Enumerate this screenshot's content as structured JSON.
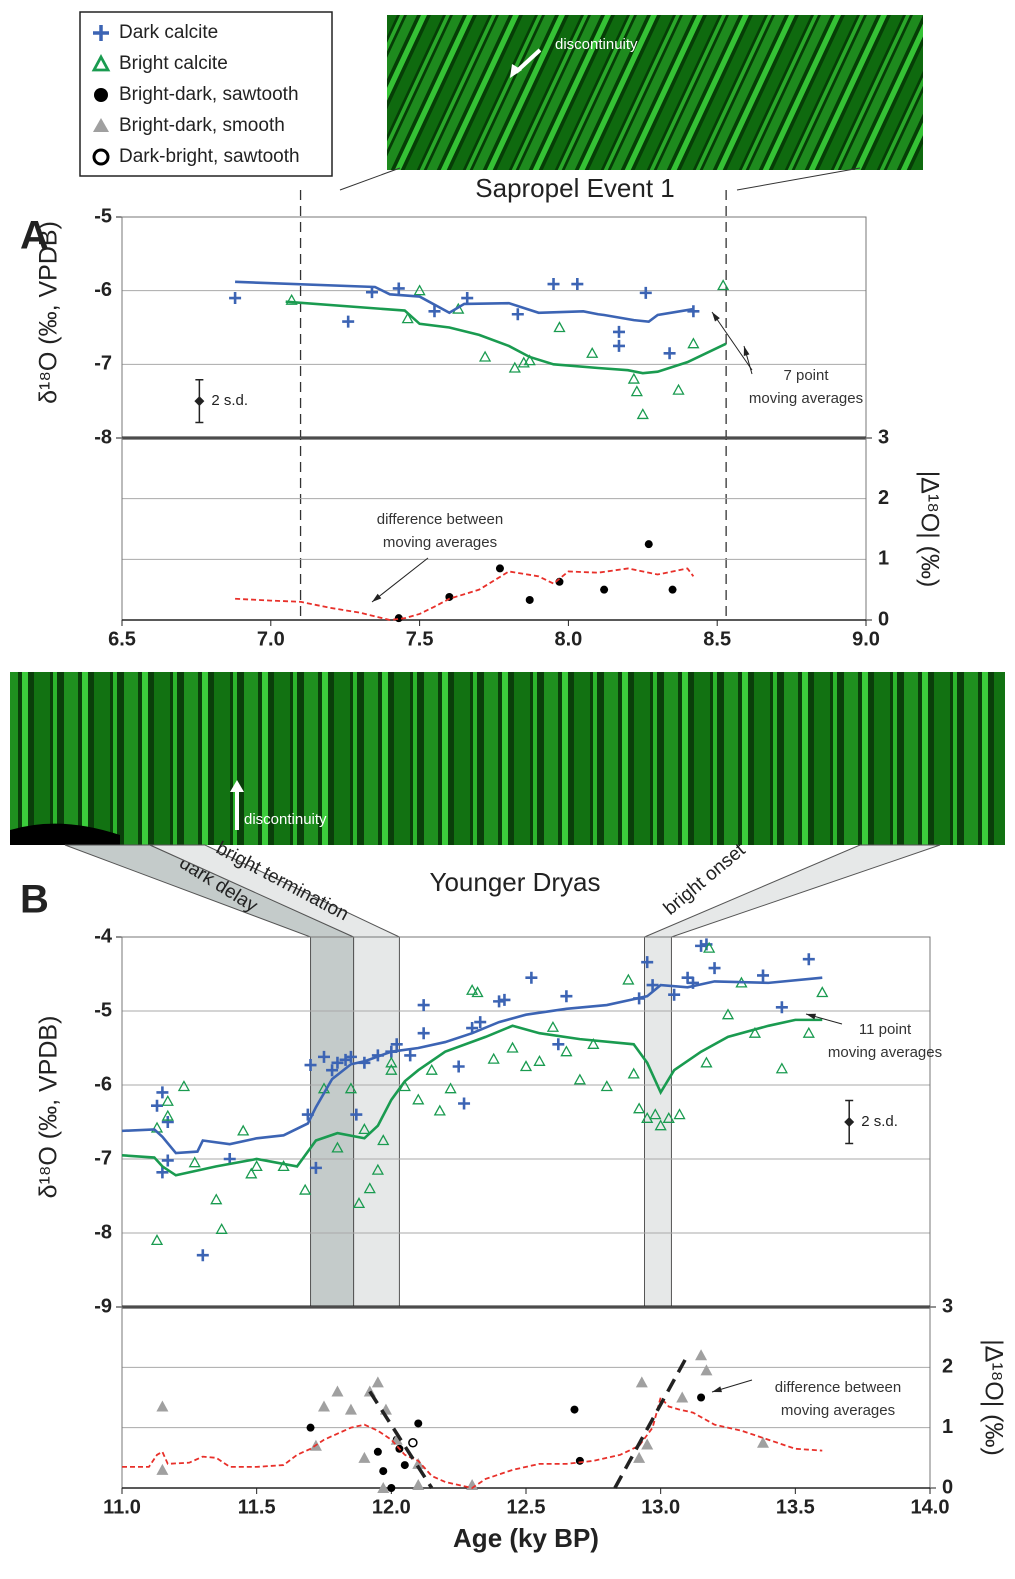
{
  "legend_border": true,
  "chart_data": [
    {
      "type": "scatter",
      "panel": "A",
      "title": "Sapropel Event 1",
      "ylabel": "δ¹⁸O (‰, VPDB)",
      "xlim": [
        6.5,
        9.0
      ],
      "ylim": [
        -8,
        -5
      ],
      "yticks": [
        -8,
        -7,
        -6,
        -5
      ],
      "grid": true,
      "vlines": [
        7.1,
        8.53
      ],
      "series": [
        {
          "name": "Dark calcite",
          "color": "#3c64b4",
          "marker": "plus",
          "x": [
            6.88,
            7.26,
            7.34,
            7.43,
            7.55,
            7.66,
            7.83,
            7.95,
            8.03,
            8.17,
            8.17,
            8.26,
            8.34,
            8.42
          ],
          "values": [
            -6.1,
            -6.42,
            -6.02,
            -5.97,
            -6.28,
            -6.1,
            -6.32,
            -5.91,
            -5.91,
            -6.56,
            -6.75,
            -6.03,
            -6.85,
            -6.28
          ]
        },
        {
          "name": "Bright calcite",
          "color": "#1a9b50",
          "marker": "triangle",
          "x": [
            7.07,
            7.5,
            7.46,
            7.63,
            7.72,
            7.82,
            7.85,
            7.87,
            7.97,
            8.08,
            8.22,
            8.23,
            8.25,
            8.37,
            8.42,
            8.52
          ],
          "values": [
            -6.13,
            -6.0,
            -6.38,
            -6.25,
            -6.9,
            -7.05,
            -6.98,
            -6.95,
            -6.5,
            -6.85,
            -7.2,
            -7.37,
            -7.68,
            -7.35,
            -6.72,
            -5.93
          ]
        },
        {
          "color": "#3c64b4",
          "marker": "line",
          "x": [
            6.88,
            7.35,
            7.4,
            7.5,
            7.6,
            7.65,
            7.8,
            7.9,
            8.05,
            8.1,
            8.12,
            8.22,
            8.27,
            8.3,
            8.42
          ],
          "values": [
            -5.88,
            -5.95,
            -6.05,
            -6.08,
            -6.3,
            -6.18,
            -6.17,
            -6.3,
            -6.28,
            -6.32,
            -6.33,
            -6.4,
            -6.42,
            -6.33,
            -6.25
          ]
        },
        {
          "color": "#1a9b50",
          "marker": "line",
          "x": [
            7.05,
            7.45,
            7.5,
            7.6,
            7.7,
            7.8,
            7.87,
            7.95,
            8.1,
            8.2,
            8.25,
            8.3,
            8.4,
            8.53
          ],
          "values": [
            -6.15,
            -6.27,
            -6.45,
            -6.5,
            -6.6,
            -6.75,
            -6.9,
            -7.0,
            -7.05,
            -7.08,
            -7.12,
            -7.1,
            -6.97,
            -6.72
          ]
        }
      ],
      "error_bar": {
        "x": 6.76,
        "value": -7.5,
        "error": 0.29,
        "label": "2 s.d."
      },
      "annotations": [
        [
          "7 point",
          "moving averages"
        ]
      ]
    },
    {
      "type": "scatter",
      "ylabel": "|Δ¹⁸O| (‰)",
      "xlim": [
        6.5,
        9.0
      ],
      "ylim": [
        0,
        3
      ],
      "yticks": [
        0,
        1,
        2,
        3
      ],
      "grid": true,
      "xticks": [
        6.5,
        {
          "value": 7.0,
          "label": "7.0"
        },
        7.5,
        {
          "value": 8.0,
          "label": "8.0"
        },
        8.5,
        {
          "value": 9.0,
          "label": "9.0"
        }
      ],
      "series": [
        {
          "color": "#000000",
          "marker": "dot",
          "x": [
            7.43,
            7.6,
            7.77,
            7.87,
            7.97,
            8.12,
            8.27,
            8.35
          ],
          "values": [
            0.03,
            0.38,
            0.85,
            0.33,
            0.63,
            0.5,
            1.25,
            0.5
          ]
        },
        {
          "color": "#e8302a",
          "marker": "dashed-line",
          "x": [
            6.88,
            7.0,
            7.1,
            7.2,
            7.3,
            7.4,
            7.45,
            7.5,
            7.55,
            7.6,
            7.7,
            7.8,
            7.9,
            7.95,
            8.0,
            8.1,
            8.2,
            8.3,
            8.4,
            8.42
          ],
          "values": [
            0.35,
            0.32,
            0.3,
            0.2,
            0.12,
            0.0,
            0.03,
            0.1,
            0.22,
            0.35,
            0.5,
            0.8,
            0.72,
            0.6,
            0.8,
            0.78,
            0.85,
            0.75,
            0.85,
            0.72
          ]
        }
      ],
      "annotations": [
        [
          "difference between",
          "moving averages"
        ]
      ]
    },
    {
      "type": "scatter",
      "panel": "B",
      "title": "Younger Dryas",
      "ylabel": "δ¹⁸O (‰, VPDB)",
      "xlim": [
        11.0,
        14.0
      ],
      "ylim": [
        -9,
        -4
      ],
      "yticks": [
        -9,
        -8,
        -7,
        -6,
        -5,
        -4
      ],
      "grid": true,
      "bands": [
        {
          "label": "dark delay",
          "from": 11.7,
          "to": 11.86,
          "color": "#c4cbca"
        },
        {
          "label": "bright termination",
          "from": 11.86,
          "to": 12.03,
          "color": "#e6e8e8"
        },
        {
          "label": "bright onset",
          "from": 12.94,
          "to": 13.04,
          "color": "#e6e8e8"
        }
      ],
      "series": [
        {
          "color": "#3c64b4",
          "marker": "plus",
          "x": [
            11.13,
            11.15,
            11.17,
            11.15,
            11.17,
            11.3,
            11.4,
            11.72,
            11.69,
            11.7,
            11.75,
            11.78,
            11.8,
            11.83,
            11.85,
            11.87,
            11.9,
            11.95,
            12.0,
            12.02,
            12.07,
            12.12,
            12.12,
            12.25,
            12.27,
            12.3,
            12.33,
            12.4,
            12.42,
            12.52,
            12.62,
            12.65,
            12.92,
            12.95,
            12.97,
            13.05,
            13.1,
            13.12,
            13.15,
            13.17,
            13.2,
            13.38,
            13.45,
            13.55
          ],
          "values": [
            -6.28,
            -6.1,
            -6.5,
            -7.18,
            -7.02,
            -8.3,
            -7.0,
            -7.12,
            -6.4,
            -5.73,
            -5.62,
            -5.8,
            -5.7,
            -5.66,
            -5.62,
            -6.4,
            -5.7,
            -5.6,
            -5.55,
            -5.45,
            -5.6,
            -4.92,
            -5.3,
            -5.75,
            -6.25,
            -5.23,
            -5.15,
            -4.87,
            -4.85,
            -4.55,
            -5.45,
            -4.8,
            -4.83,
            -4.34,
            -4.65,
            -4.78,
            -4.55,
            -4.62,
            -4.12,
            -4.1,
            -4.42,
            -4.52,
            -4.95,
            -4.3
          ]
        },
        {
          "color": "#1a9b50",
          "marker": "triangle",
          "x": [
            11.13,
            11.13,
            11.17,
            11.17,
            11.23,
            11.27,
            11.35,
            11.37,
            11.45,
            11.48,
            11.5,
            11.6,
            11.68,
            11.75,
            11.8,
            11.85,
            11.88,
            11.9,
            11.92,
            11.95,
            11.97,
            12.0,
            12.0,
            12.05,
            12.1,
            12.15,
            12.18,
            12.22,
            12.3,
            12.32,
            12.38,
            12.45,
            12.5,
            12.55,
            12.6,
            12.65,
            12.7,
            12.75,
            12.8,
            12.88,
            12.9,
            12.92,
            12.95,
            12.98,
            13.0,
            13.03,
            13.07,
            13.17,
            13.18,
            13.25,
            13.3,
            13.35,
            13.45,
            13.55,
            13.6
          ],
          "values": [
            -8.1,
            -6.58,
            -6.22,
            -6.42,
            -6.02,
            -7.05,
            -7.55,
            -7.95,
            -6.62,
            -7.2,
            -7.1,
            -7.1,
            -7.42,
            -6.05,
            -6.85,
            -6.05,
            -7.6,
            -6.6,
            -7.4,
            -7.15,
            -6.75,
            -5.7,
            -5.8,
            -6.02,
            -6.2,
            -5.8,
            -6.35,
            -6.05,
            -4.72,
            -4.75,
            -5.65,
            -5.5,
            -5.75,
            -5.68,
            -5.22,
            -5.55,
            -5.93,
            -5.45,
            -6.02,
            -4.58,
            -5.85,
            -6.32,
            -6.45,
            -6.4,
            -6.55,
            -6.45,
            -6.4,
            -5.7,
            -4.15,
            -5.05,
            -4.62,
            -5.3,
            -5.78,
            -5.3,
            -4.75
          ]
        },
        {
          "color": "#3c64b4",
          "marker": "line",
          "x": [
            11.0,
            11.12,
            11.15,
            11.2,
            11.28,
            11.3,
            11.4,
            11.5,
            11.6,
            11.69,
            11.72,
            11.78,
            11.85,
            11.9,
            12.0,
            12.1,
            12.2,
            12.3,
            12.4,
            12.5,
            12.65,
            12.8,
            12.95,
            13.0,
            13.1,
            13.2,
            13.4,
            13.6
          ],
          "values": [
            -6.62,
            -6.6,
            -6.7,
            -6.92,
            -6.9,
            -6.75,
            -6.8,
            -6.72,
            -6.68,
            -6.52,
            -6.3,
            -5.92,
            -5.72,
            -5.68,
            -5.55,
            -5.5,
            -5.42,
            -5.3,
            -5.15,
            -5.05,
            -4.97,
            -4.92,
            -4.8,
            -4.65,
            -4.68,
            -4.6,
            -4.62,
            -4.55
          ]
        },
        {
          "color": "#1a9b50",
          "marker": "line",
          "x": [
            11.0,
            11.12,
            11.15,
            11.2,
            11.35,
            11.5,
            11.65,
            11.72,
            11.8,
            11.9,
            11.95,
            12.0,
            12.05,
            12.1,
            12.2,
            12.35,
            12.45,
            12.55,
            12.7,
            12.9,
            12.95,
            13.0,
            13.05,
            13.15,
            13.25,
            13.4,
            13.5,
            13.6
          ],
          "values": [
            -6.95,
            -6.98,
            -7.1,
            -7.22,
            -7.1,
            -7.0,
            -7.1,
            -6.75,
            -6.65,
            -6.72,
            -6.55,
            -6.2,
            -5.95,
            -5.8,
            -5.55,
            -5.35,
            -5.2,
            -5.3,
            -5.38,
            -5.45,
            -5.7,
            -6.1,
            -5.8,
            -5.55,
            -5.35,
            -5.2,
            -5.12,
            -5.12
          ]
        }
      ],
      "error_bar": {
        "x": 13.7,
        "value": -6.5,
        "error": 0.29,
        "label": "2 s.d."
      },
      "annotations": [
        [
          "11 point",
          "moving averages"
        ]
      ]
    },
    {
      "type": "scatter",
      "ylabel": "|Δ¹⁸O| (‰)",
      "xlabel": "Age (ky BP)",
      "xlim": [
        11.0,
        14.0
      ],
      "ylim": [
        0,
        3
      ],
      "yticks": [
        0,
        1,
        2,
        3
      ],
      "grid": true,
      "xticks": [
        {
          "value": 11.0,
          "label": "11.0"
        },
        11.5,
        {
          "value": 12.0,
          "label": "12.0"
        },
        12.5,
        {
          "value": 13.0,
          "label": "13.0"
        },
        13.5,
        {
          "value": 14.0,
          "label": "14.0"
        }
      ],
      "series": [
        {
          "name": "Bright-dark, sawtooth",
          "color": "#000000",
          "marker": "dot",
          "x": [
            11.7,
            11.95,
            11.97,
            12.0,
            12.02,
            12.03,
            12.05,
            12.1,
            12.68,
            12.7,
            13.15
          ],
          "values": [
            1.0,
            0.6,
            0.28,
            0.0,
            0.8,
            0.65,
            0.38,
            1.07,
            1.3,
            0.45,
            1.5
          ]
        },
        {
          "name": "Bright-dark, smooth",
          "color": "#a0a0a0",
          "marker": "filled-triangle",
          "x": [
            11.15,
            11.15,
            11.72,
            11.75,
            11.8,
            11.85,
            11.9,
            11.92,
            11.95,
            11.97,
            11.98,
            12.02,
            12.1,
            12.1,
            12.3,
            12.92,
            12.93,
            12.95,
            13.08,
            13.15,
            13.17,
            13.38
          ],
          "values": [
            1.35,
            0.3,
            0.7,
            1.35,
            1.6,
            1.3,
            0.5,
            1.6,
            1.75,
            0.0,
            1.3,
            0.8,
            0.4,
            0.05,
            0.05,
            0.5,
            1.75,
            0.72,
            1.5,
            2.2,
            1.95,
            0.75
          ]
        },
        {
          "name": "Dark-bright, sawtooth",
          "color": "#000000",
          "marker": "open-circle",
          "x": [
            12.08
          ],
          "values": [
            0.75
          ]
        },
        {
          "color": "#e8302a",
          "marker": "dashed-line",
          "x": [
            11.0,
            11.1,
            11.13,
            11.15,
            11.17,
            11.25,
            11.3,
            11.35,
            11.4,
            11.5,
            11.6,
            11.65,
            11.7,
            11.75,
            11.8,
            11.85,
            11.9,
            11.95,
            12.0,
            12.05,
            12.1,
            12.15,
            12.2,
            12.25,
            12.3,
            12.35,
            12.45,
            12.55,
            12.65,
            12.75,
            12.85,
            12.92,
            12.97,
            13.0,
            13.03,
            13.07,
            13.12,
            13.2,
            13.3,
            13.4,
            13.5,
            13.6
          ],
          "values": [
            0.35,
            0.35,
            0.55,
            0.6,
            0.4,
            0.42,
            0.52,
            0.5,
            0.35,
            0.35,
            0.38,
            0.55,
            0.65,
            0.8,
            0.9,
            1.0,
            1.05,
            0.95,
            0.8,
            0.55,
            0.45,
            0.2,
            0.1,
            0.05,
            0.0,
            0.15,
            0.3,
            0.4,
            0.4,
            0.45,
            0.55,
            0.7,
            1.0,
            1.5,
            1.35,
            1.3,
            1.25,
            1.05,
            0.95,
            0.8,
            0.65,
            0.62
          ]
        }
      ],
      "trend_lines": [
        {
          "x": [
            11.92,
            12.15
          ],
          "values": [
            1.6,
            0.0
          ]
        },
        {
          "x": [
            12.83,
            13.1
          ],
          "values": [
            0.0,
            2.2
          ]
        }
      ],
      "annotations": [
        [
          "difference between",
          "moving averages"
        ]
      ]
    }
  ],
  "image_labels": [
    "discontinuity",
    "discontinuity"
  ]
}
